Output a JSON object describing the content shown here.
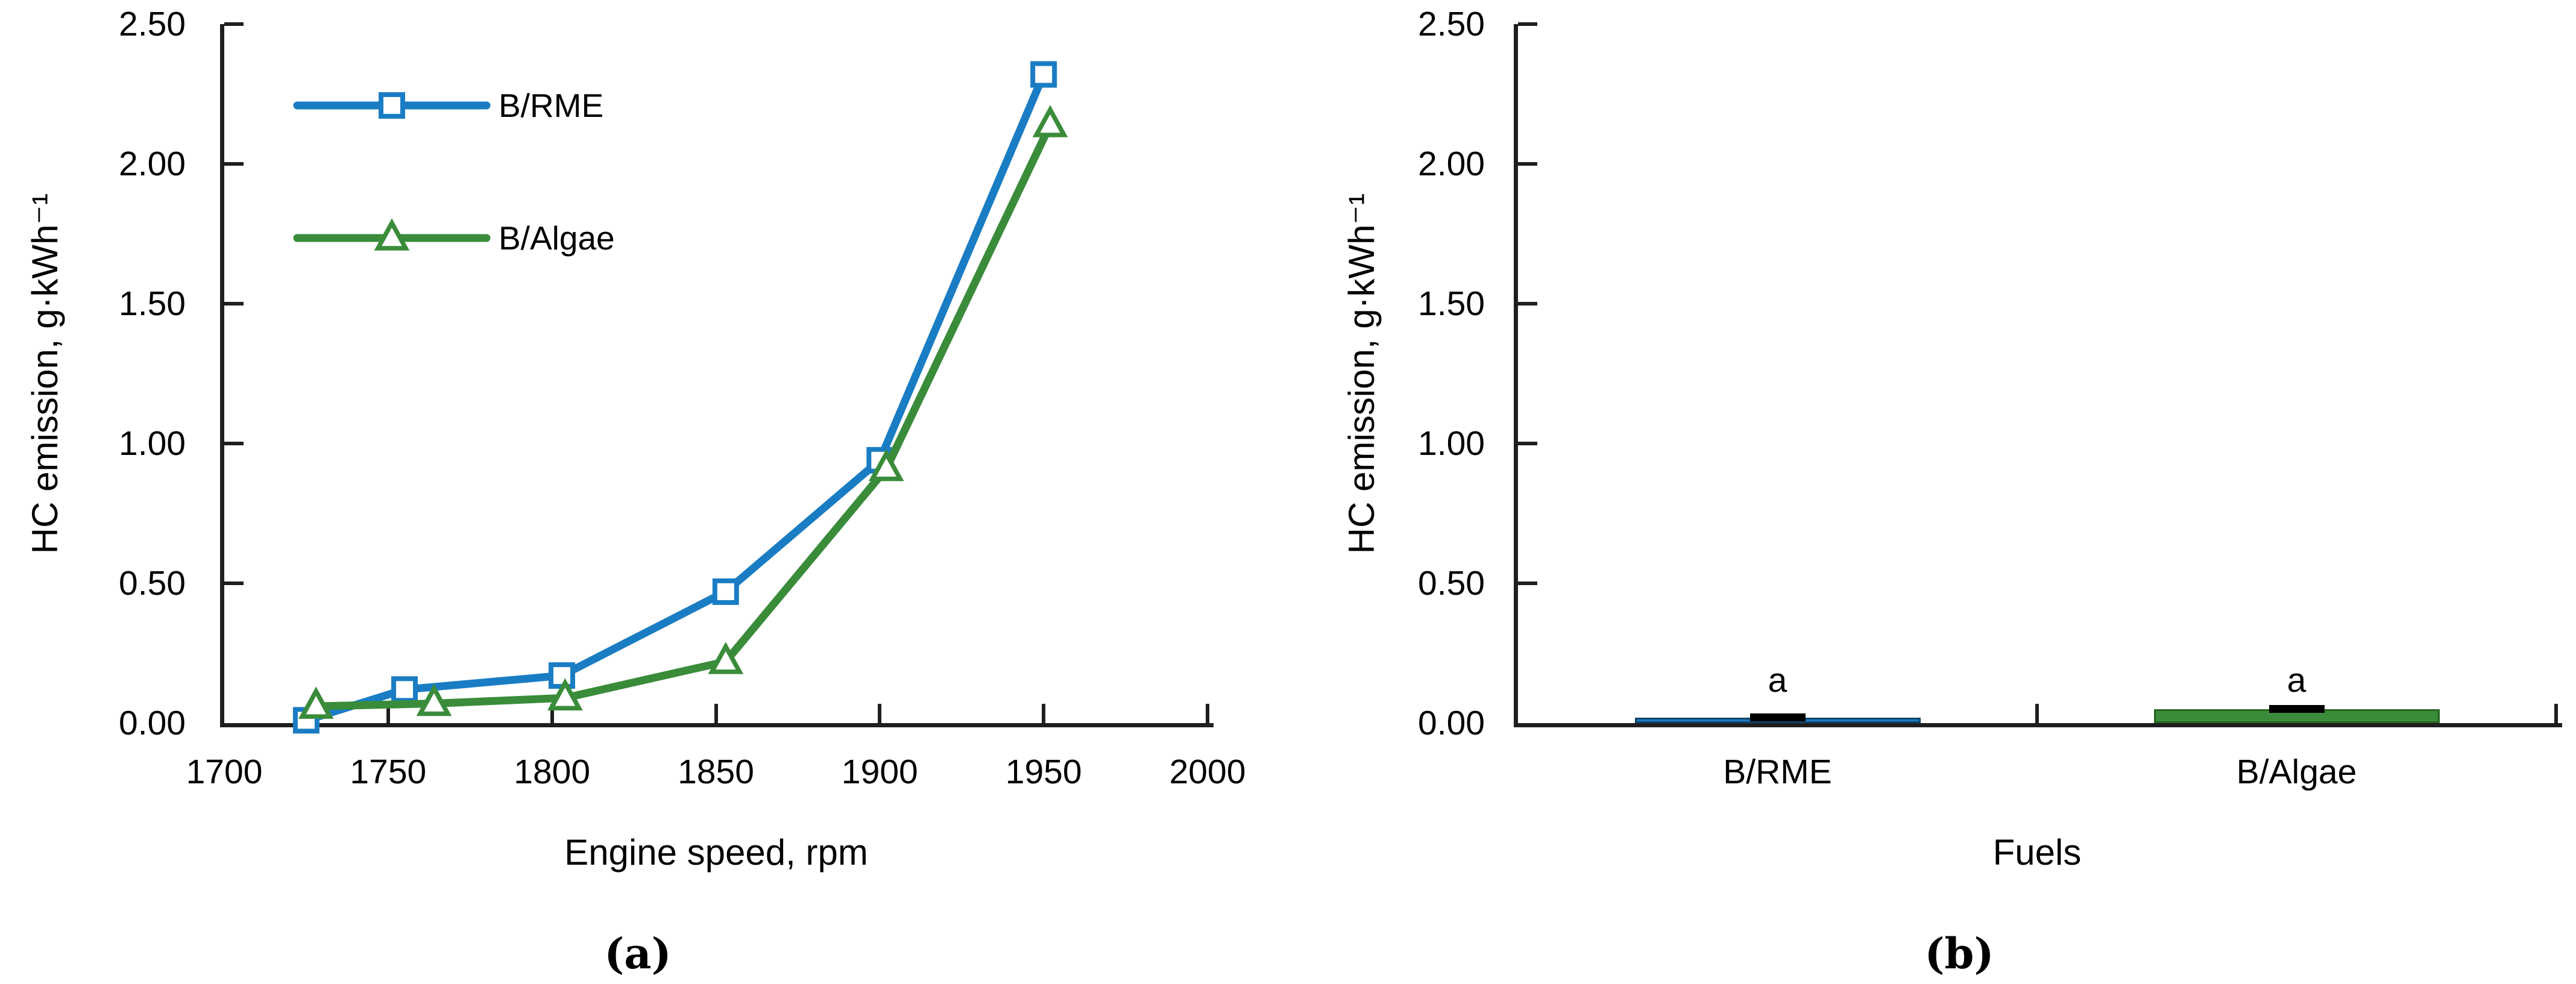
{
  "figure": {
    "caption_a": "(a)",
    "caption_b": "(b)",
    "background": "#ffffff"
  },
  "colors": {
    "axis": "#1f1f1f",
    "text": "#000000",
    "b_rme_blue": "#1A7DC4",
    "b_algae_green": "#3A8C3A",
    "bar_blue_border": "#10456B",
    "bar_green_border": "#28641F",
    "error_cap": "#000000",
    "marker_fill": "#ffffff"
  },
  "chart_data": [
    {
      "id": "a",
      "type": "line",
      "title": "",
      "xlabel": "Engine speed, rpm",
      "ylabel": "HC emission, g·kWh⁻¹",
      "xlim": [
        1700,
        2000
      ],
      "ylim": [
        0,
        2.5
      ],
      "x_ticks": [
        1700,
        1750,
        1800,
        1850,
        1900,
        1950,
        2000
      ],
      "y_tick_labels": [
        "0.00",
        "0.50",
        "1.00",
        "1.50",
        "2.00",
        "2.50"
      ],
      "grid": false,
      "legend_position": "inside-top-left",
      "series": [
        {
          "name": "B/RME",
          "marker": "square",
          "color": "#1A7DC4",
          "points": [
            [
              1725,
              0.01
            ],
            [
              1755,
              0.12
            ],
            [
              1803,
              0.17
            ],
            [
              1853,
              0.47
            ],
            [
              1900,
              0.94
            ],
            [
              1950,
              2.32
            ]
          ]
        },
        {
          "name": "B/Algae",
          "marker": "triangle",
          "color": "#3A8C3A",
          "points": [
            [
              1728,
              0.06
            ],
            [
              1764,
              0.07
            ],
            [
              1804,
              0.09
            ],
            [
              1853,
              0.22
            ],
            [
              1902,
              0.91
            ],
            [
              1952,
              2.14
            ]
          ]
        }
      ]
    },
    {
      "id": "b",
      "type": "bar",
      "title": "",
      "xlabel": "Fuels",
      "ylabel": "HC emission, g·kWh⁻¹",
      "ylim": [
        0,
        2.5
      ],
      "y_tick_labels": [
        "0.00",
        "0.50",
        "1.00",
        "1.50",
        "2.00",
        "2.50"
      ],
      "grid": false,
      "categories": [
        "B/RME",
        "B/Algae"
      ],
      "values": [
        0.02,
        0.05
      ],
      "bar_colors": [
        "#1A7DC4",
        "#3A8C3A"
      ],
      "bar_border_colors": [
        "#10456B",
        "#28641F"
      ],
      "significance_labels": [
        "a",
        "a"
      ],
      "error_caps": true
    }
  ]
}
